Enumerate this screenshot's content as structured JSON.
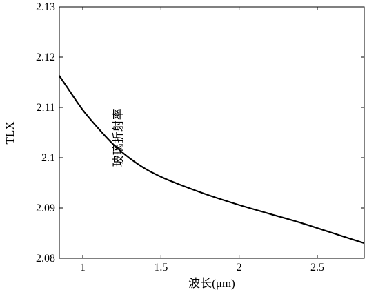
{
  "chart_data": {
    "type": "line",
    "xlabel": "波长(μm)",
    "ylabel": "TLX",
    "xlim": [
      0.85,
      2.8
    ],
    "ylim": [
      2.08,
      2.13
    ],
    "x_ticks": [
      1,
      1.5,
      2,
      2.5
    ],
    "y_ticks": [
      2.08,
      2.09,
      2.1,
      2.11,
      2.12,
      2.13
    ],
    "x_tick_labels": [
      "1",
      "1.5",
      "2",
      "2.5"
    ],
    "y_tick_labels": [
      "2.08",
      "2.09",
      "2.1",
      "2.11",
      "2.12",
      "2.13"
    ],
    "grid": false,
    "annotation": {
      "text": "玻璃折射率",
      "x": 1.23,
      "y": 2.104,
      "orientation": "vertical"
    },
    "series": [
      {
        "x": [
          0.85,
          0.9,
          1.0,
          1.1,
          1.2,
          1.3,
          1.4,
          1.5,
          1.6,
          1.8,
          2.0,
          2.2,
          2.4,
          2.6,
          2.8
        ],
        "y": [
          2.1163,
          2.114,
          2.1095,
          2.1058,
          2.1025,
          2.0999,
          2.0978,
          2.0962,
          2.0949,
          2.0926,
          2.0906,
          2.0888,
          2.087,
          2.085,
          2.083
        ]
      }
    ]
  }
}
